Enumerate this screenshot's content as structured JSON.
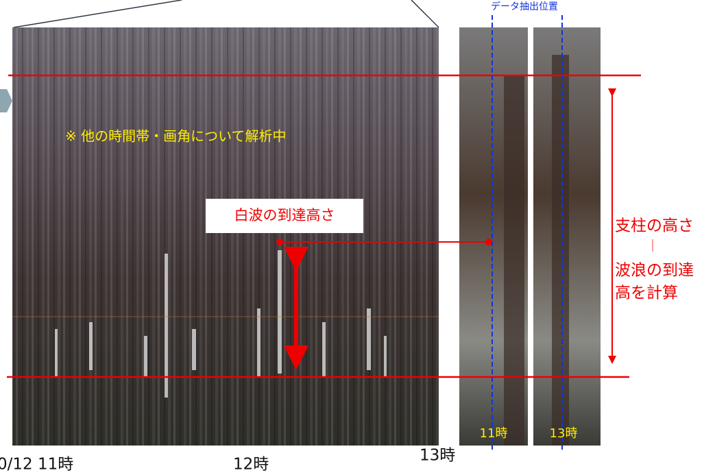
{
  "header": {
    "extraction_label": "データ抽出位置"
  },
  "panel": {
    "note": "※ 他の時間帯・画角について解析中",
    "callout": "白波の到達高さ"
  },
  "photos": {
    "left_time": "11時",
    "right_time": "13時"
  },
  "explanation": {
    "lines": [
      "支柱の高さ",
      "｜",
      "波浪の到達",
      "高を計算"
    ]
  },
  "x_labels": [
    "0/12 11時",
    "12時",
    "13時"
  ]
}
